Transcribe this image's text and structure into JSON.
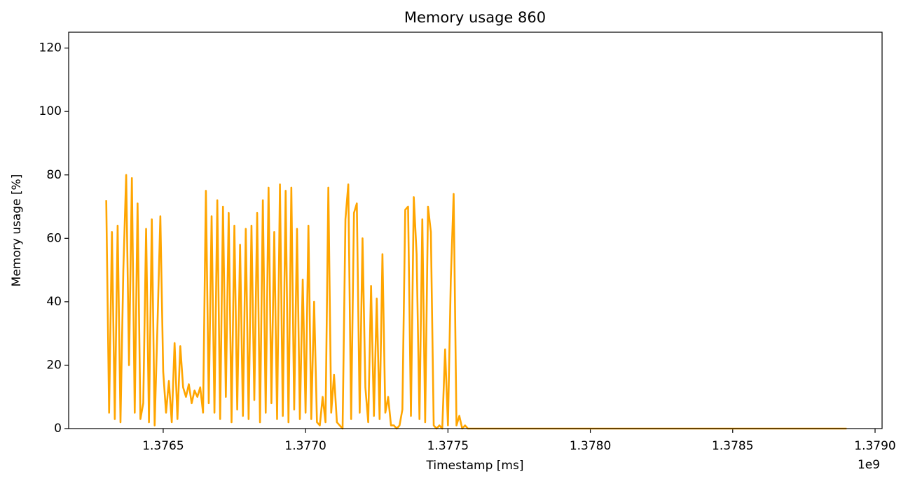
{
  "chart_data": {
    "type": "line",
    "title": "Memory usage 860",
    "x_label": "Timestamp [ms]",
    "y_label": "Memory usage [%]",
    "x_offset_label": "1e9",
    "xlim": [
      1376168000,
      1379024600
    ],
    "ylim": [
      0,
      125
    ],
    "xticks": [
      {
        "value": 1376500000,
        "label": "1.3765"
      },
      {
        "value": 1377000000,
        "label": "1.3770"
      },
      {
        "value": 1377500000,
        "label": "1.3775"
      },
      {
        "value": 1378000000,
        "label": "1.3780"
      },
      {
        "value": 1378500000,
        "label": "1.3785"
      },
      {
        "value": 1379000000,
        "label": "1.3790"
      }
    ],
    "yticks": [
      0,
      20,
      40,
      60,
      80,
      100,
      120
    ],
    "x": [
      1376300000,
      1376310000,
      1376320000,
      1376330000,
      1376340000,
      1376350000,
      1376360000,
      1376370000,
      1376380000,
      1376390000,
      1376400000,
      1376410000,
      1376420000,
      1376430000,
      1376440000,
      1376450000,
      1376460000,
      1376470000,
      1376480000,
      1376490000,
      1376500000,
      1376510000,
      1376520000,
      1376530000,
      1376540000,
      1376550000,
      1376560000,
      1376570000,
      1376580000,
      1376590000,
      1376600000,
      1376610000,
      1376620000,
      1376630000,
      1376640000,
      1376650000,
      1376660000,
      1376670000,
      1376680000,
      1376690000,
      1376700000,
      1376710000,
      1376720000,
      1376730000,
      1376740000,
      1376750000,
      1376760000,
      1376770000,
      1376780000,
      1376790000,
      1376800000,
      1376810000,
      1376820000,
      1376830000,
      1376840000,
      1376850000,
      1376860000,
      1376870000,
      1376880000,
      1376890000,
      1376900000,
      1376910000,
      1376920000,
      1376930000,
      1376940000,
      1376950000,
      1376960000,
      1376970000,
      1376980000,
      1376990000,
      1377000000,
      1377010000,
      1377020000,
      1377030000,
      1377040000,
      1377050000,
      1377060000,
      1377070000,
      1377080000,
      1377090000,
      1377100000,
      1377110000,
      1377120000,
      1377130000,
      1377140000,
      1377150000,
      1377160000,
      1377170000,
      1377180000,
      1377190000,
      1377200000,
      1377210000,
      1377220000,
      1377230000,
      1377240000,
      1377250000,
      1377260000,
      1377270000,
      1377280000,
      1377290000,
      1377300000,
      1377310000,
      1377320000,
      1377330000,
      1377340000,
      1377350000,
      1377360000,
      1377370000,
      1377380000,
      1377390000,
      1377400000,
      1377410000,
      1377420000,
      1377430000,
      1377440000,
      1377450000,
      1377460000,
      1377470000,
      1377480000,
      1377490000,
      1377500000,
      1377510000,
      1377520000,
      1377530000,
      1377540000,
      1377550000,
      1377560000,
      1377570000,
      1377580000,
      1377590000,
      1377700000,
      1378000000,
      1378500000,
      1378900000
    ],
    "series": [
      {
        "name": "Memory usage",
        "color": "#ffa500",
        "values": [
          72,
          5,
          62,
          3,
          64,
          2,
          50,
          80,
          20,
          79,
          5,
          71,
          3,
          8,
          63,
          2,
          66,
          1,
          33,
          67,
          18,
          5,
          15,
          2,
          27,
          3,
          26,
          13,
          10,
          14,
          8,
          12,
          10,
          13,
          5,
          75,
          8,
          67,
          5,
          72,
          3,
          70,
          10,
          68,
          2,
          64,
          6,
          58,
          4,
          63,
          3,
          64,
          9,
          68,
          2,
          72,
          5,
          76,
          8,
          62,
          3,
          77,
          4,
          75,
          2,
          76,
          6,
          63,
          3,
          47,
          5,
          64,
          3,
          40,
          2,
          1,
          10,
          2,
          76,
          5,
          17,
          2,
          1,
          0,
          66,
          77,
          3,
          68,
          71,
          5,
          60,
          13,
          2,
          45,
          4,
          41,
          3,
          55,
          5,
          10,
          1,
          1,
          0,
          1,
          6,
          69,
          70,
          4,
          73,
          55,
          3,
          66,
          2,
          70,
          62,
          1,
          0,
          1,
          0,
          25,
          1,
          47,
          74,
          1,
          4,
          0,
          1,
          0,
          0,
          0,
          0,
          0,
          0,
          0
        ]
      }
    ]
  }
}
